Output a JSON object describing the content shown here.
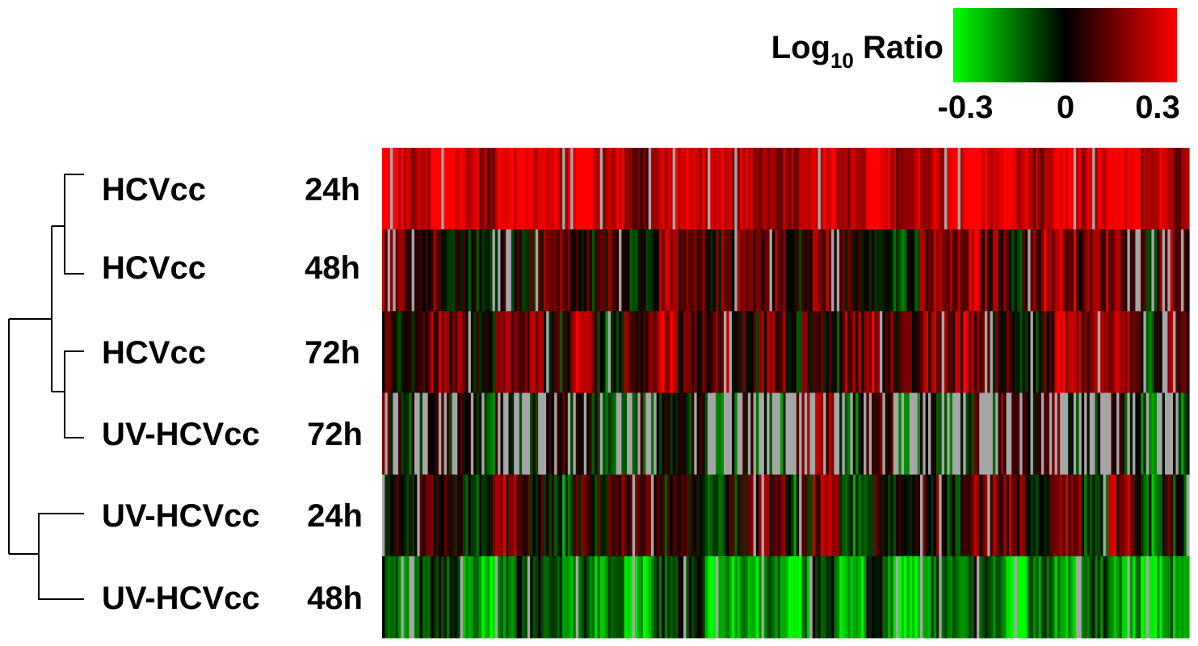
{
  "chart_data": {
    "type": "heatmap",
    "title": "",
    "legend": {
      "title_main": "Log",
      "title_sub": "10",
      "title_rest": " Ratio",
      "ticks": [
        "-0.3",
        "0",
        "0.3"
      ],
      "range": [
        -0.3,
        0.3
      ],
      "placement": "top-right",
      "colors": {
        "low": "#00ff00",
        "mid": "#000000",
        "high": "#ff0000",
        "missing": "#a6a6a6"
      }
    },
    "rows": [
      {
        "sample": "HCVcc",
        "time": "24h",
        "bias": 0.24,
        "spread": 0.14,
        "missing": 0.05
      },
      {
        "sample": "HCVcc",
        "time": "48h",
        "bias": 0.06,
        "spread": 0.22,
        "missing": 0.04
      },
      {
        "sample": "HCVcc",
        "time": "72h",
        "bias": 0.08,
        "spread": 0.22,
        "missing": 0.06
      },
      {
        "sample": "UV-HCVcc",
        "time": "72h",
        "bias": -0.02,
        "spread": 0.2,
        "missing": 0.45
      },
      {
        "sample": "UV-HCVcc",
        "time": "24h",
        "bias": 0.0,
        "spread": 0.24,
        "missing": 0.05
      },
      {
        "sample": "UV-HCVcc",
        "time": "48h",
        "bias": -0.16,
        "spread": 0.16,
        "missing": 0.1
      }
    ],
    "dendrogram": "((((HCVcc 24h, HCVcc 48h), (HCVcc 72h, UV-HCVcc 72h)), (UV-HCVcc 24h, UV-HCVcc 48h)))",
    "column_count": 300
  }
}
